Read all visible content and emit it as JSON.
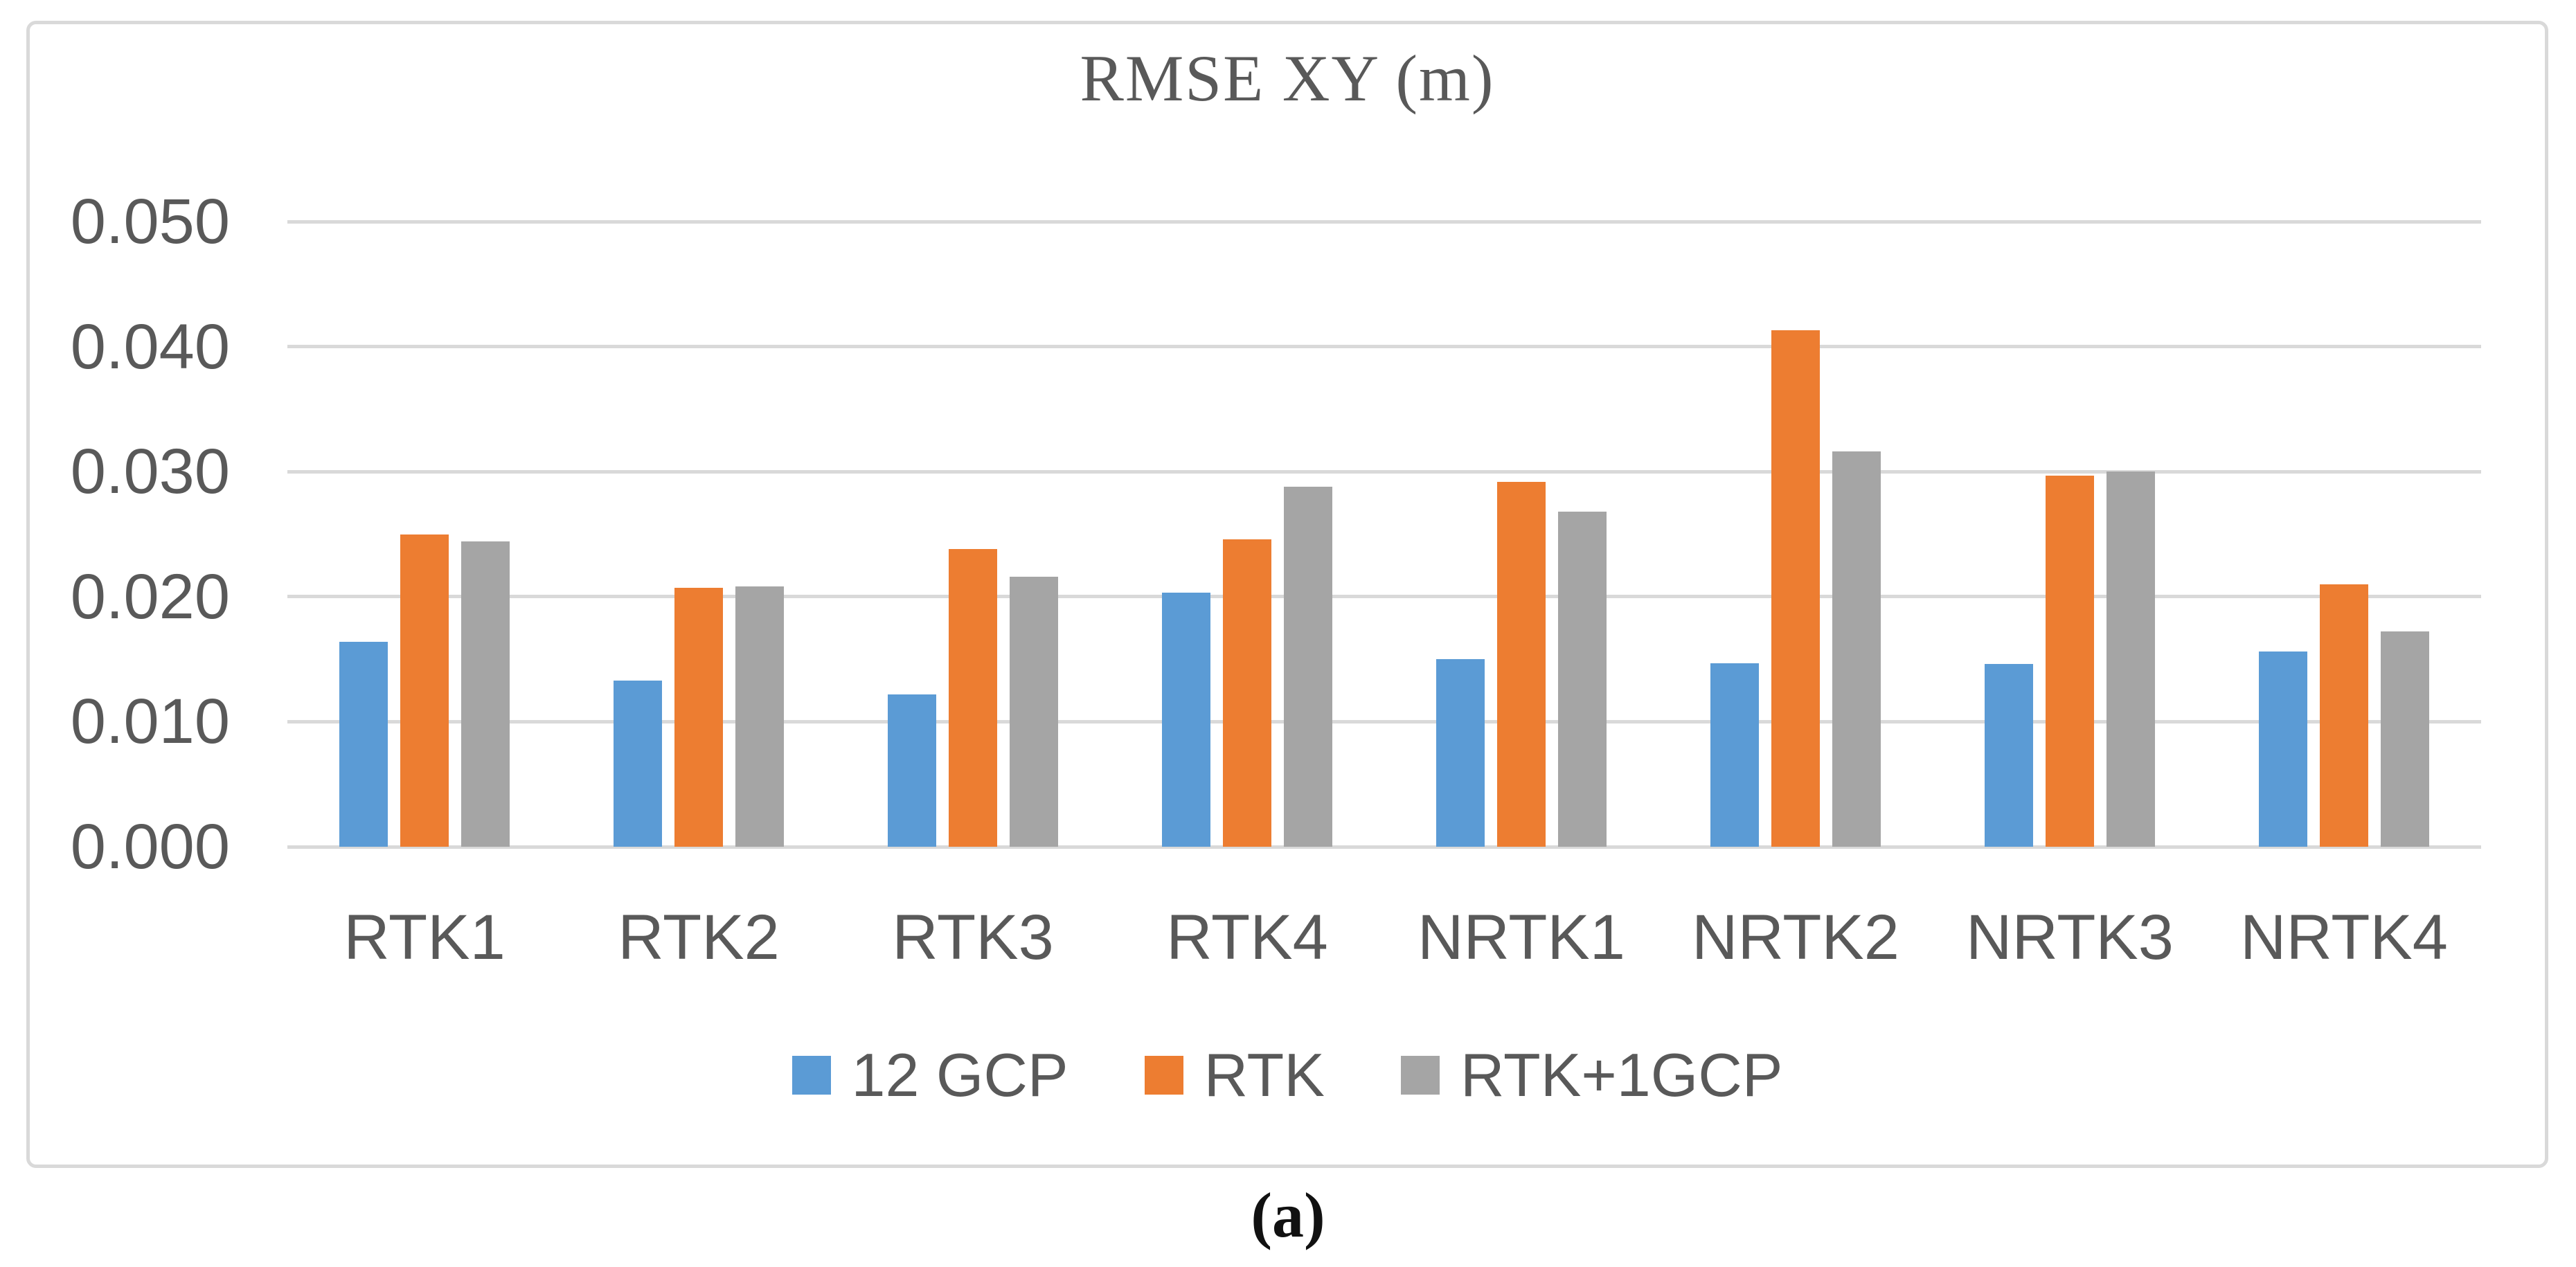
{
  "figure": {
    "caption": "(a)"
  },
  "chart_data": {
    "type": "bar",
    "title": "RMSE XY (m)",
    "categories": [
      "RTK1",
      "RTK2",
      "RTK3",
      "RTK4",
      "NRTK1",
      "NRTK2",
      "NRTK3",
      "NRTK4"
    ],
    "series": [
      {
        "name": "12 GCP",
        "color": "#5B9BD5",
        "values": [
          0.0164,
          0.0133,
          0.0122,
          0.0203,
          0.015,
          0.0147,
          0.0146,
          0.0156
        ]
      },
      {
        "name": "RTK",
        "color": "#ED7D31",
        "values": [
          0.025,
          0.0207,
          0.0238,
          0.0246,
          0.0292,
          0.0413,
          0.0297,
          0.021
        ]
      },
      {
        "name": "RTK+1GCP",
        "color": "#A5A5A5",
        "values": [
          0.0244,
          0.0208,
          0.0216,
          0.0288,
          0.0268,
          0.0316,
          0.03,
          0.0172
        ]
      }
    ],
    "ylim": [
      0.0,
      0.05
    ],
    "ytick_step": 0.01,
    "ytick_labels": [
      "0.000",
      "0.010",
      "0.020",
      "0.030",
      "0.040",
      "0.050"
    ],
    "grid": true,
    "legend_position": "bottom",
    "colors": {
      "gridline": "#D9D9D9",
      "frame_border": "#D9D9D9",
      "axis_text": "#595959",
      "title_text": "#595959"
    }
  }
}
